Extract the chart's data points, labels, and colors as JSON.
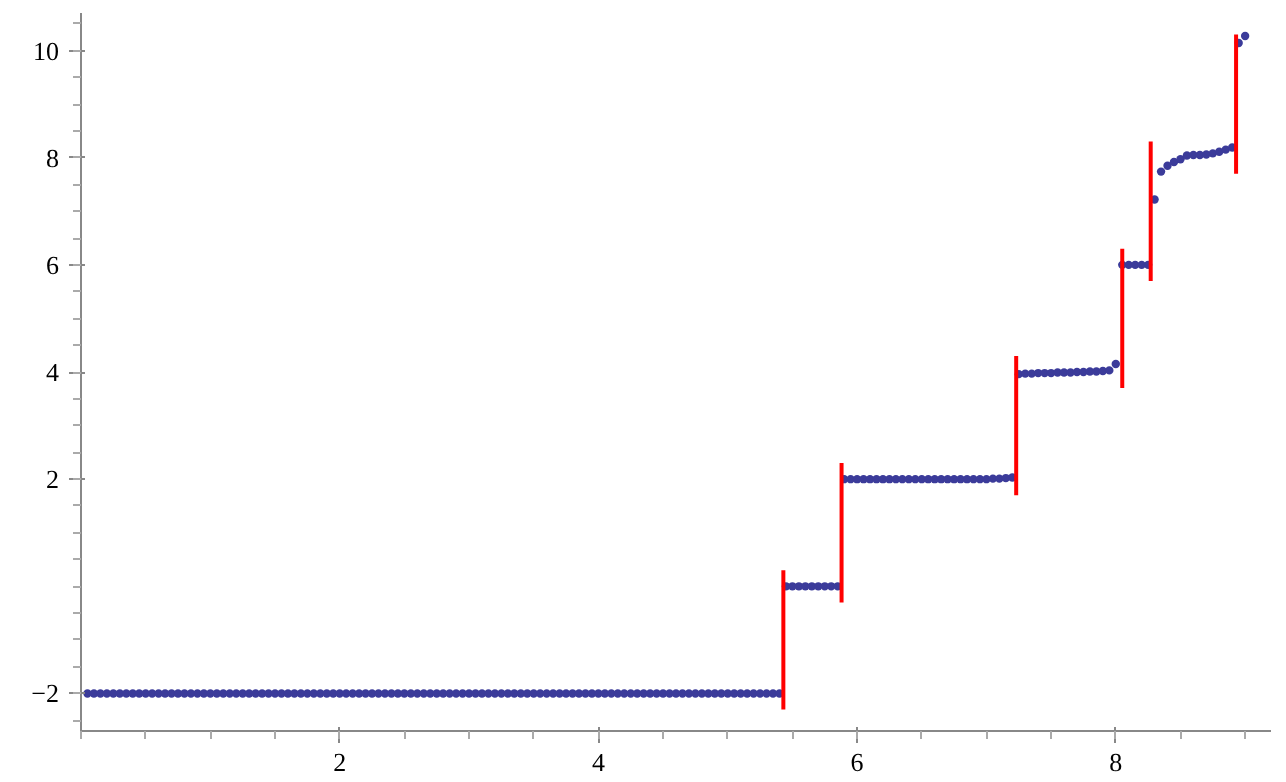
{
  "chart_data": {
    "type": "scatter",
    "xlim": [
      0,
      9.2
    ],
    "ylim": [
      -2.7,
      10.7
    ],
    "xticks": [
      2,
      4,
      6,
      8
    ],
    "yticks": [
      {
        "value": -2,
        "label": "−2"
      },
      2,
      4,
      6,
      8,
      10
    ],
    "grid": false,
    "series": [
      {
        "marker": "circle",
        "color": "#3b3b9a",
        "x": [
          0.05,
          0.1,
          0.15,
          0.2,
          0.25,
          0.3,
          0.35,
          0.4,
          0.45,
          0.5,
          0.55,
          0.6,
          0.65,
          0.7,
          0.75,
          0.8,
          0.85,
          0.9,
          0.95,
          1.0,
          1.05,
          1.1,
          1.15,
          1.2,
          1.25,
          1.3,
          1.35,
          1.4,
          1.45,
          1.5,
          1.55,
          1.6,
          1.65,
          1.7,
          1.75,
          1.8,
          1.85,
          1.9,
          1.95,
          2.0,
          2.05,
          2.1,
          2.15,
          2.2,
          2.25,
          2.3,
          2.35,
          2.4,
          2.45,
          2.5,
          2.55,
          2.6,
          2.65,
          2.7,
          2.75,
          2.8,
          2.85,
          2.9,
          2.95,
          3.0,
          3.05,
          3.1,
          3.15,
          3.2,
          3.25,
          3.3,
          3.35,
          3.4,
          3.45,
          3.5,
          3.55,
          3.6,
          3.65,
          3.7,
          3.75,
          3.8,
          3.85,
          3.9,
          3.95,
          4.0,
          4.05,
          4.1,
          4.15,
          4.2,
          4.25,
          4.3,
          4.35,
          4.4,
          4.45,
          4.5,
          4.55,
          4.6,
          4.65,
          4.7,
          4.75,
          4.8,
          4.85,
          4.9,
          4.95,
          5.0,
          5.05,
          5.1,
          5.15,
          5.2,
          5.25,
          5.3,
          5.35,
          5.4,
          5.45,
          5.5,
          5.55,
          5.6,
          5.65,
          5.7,
          5.75,
          5.8,
          5.85,
          5.9,
          5.95,
          6.0,
          6.05,
          6.1,
          6.15,
          6.2,
          6.25,
          6.3,
          6.35,
          6.4,
          6.45,
          6.5,
          6.55,
          6.6,
          6.65,
          6.7,
          6.75,
          6.8,
          6.85,
          6.9,
          6.95,
          7.0,
          7.05,
          7.1,
          7.15,
          7.2,
          7.25,
          7.3,
          7.35,
          7.4,
          7.45,
          7.5,
          7.55,
          7.6,
          7.65,
          7.7,
          7.75,
          7.8,
          7.85,
          7.9,
          7.95,
          8.0,
          8.05,
          8.1,
          8.15,
          8.2,
          8.25,
          8.3,
          8.35,
          8.4,
          8.45,
          8.5,
          8.55,
          8.6,
          8.65,
          8.7,
          8.75,
          8.8,
          8.85,
          8.9,
          8.95,
          9.0
        ],
        "values": [
          -2,
          -2,
          -2,
          -2,
          -2,
          -2,
          -2,
          -2,
          -2,
          -2,
          -2,
          -2,
          -2,
          -2,
          -2,
          -2,
          -2,
          -2,
          -2,
          -2,
          -2,
          -2,
          -2,
          -2,
          -2,
          -2,
          -2,
          -2,
          -2,
          -2,
          -2,
          -2,
          -2,
          -2,
          -2,
          -2,
          -2,
          -2,
          -2,
          -2,
          -2,
          -2,
          -2,
          -2,
          -2,
          -2,
          -2,
          -2,
          -2,
          -2,
          -2,
          -2,
          -2,
          -2,
          -2,
          -2,
          -2,
          -2,
          -2,
          -2,
          -2,
          -2,
          -2,
          -2,
          -2,
          -2,
          -2,
          -2,
          -2,
          -2,
          -2,
          -2,
          -2,
          -2,
          -2,
          -2,
          -2,
          -2,
          -2,
          -2,
          -2,
          -2,
          -2,
          -2,
          -2,
          -2,
          -2,
          -2,
          -2,
          -2,
          -2,
          -2,
          -2,
          -2,
          -2,
          -2,
          -2,
          -2,
          -2,
          -2,
          -2,
          -2,
          -2,
          -2,
          -2,
          -2,
          -2,
          -2,
          0,
          0,
          0,
          0,
          0,
          0,
          0,
          0,
          0,
          2,
          2,
          2,
          2,
          2,
          2,
          2,
          2,
          2,
          2,
          2,
          2,
          2,
          2,
          2,
          2,
          2,
          2,
          2,
          2,
          2,
          2,
          2,
          2.01,
          2.01,
          2.02,
          2.03,
          3.96,
          3.97,
          3.97,
          3.98,
          3.98,
          3.98,
          3.99,
          3.99,
          3.99,
          4.0,
          4.0,
          4.01,
          4.01,
          4.02,
          4.03,
          4.15,
          6,
          6,
          6,
          6,
          6,
          7.22,
          7.74,
          7.85,
          7.92,
          7.97,
          8.04,
          8.05,
          8.05,
          8.06,
          8.08,
          8.11,
          8.15,
          8.19,
          10.14,
          10.27
        ]
      },
      {
        "type": "line",
        "color": "#ff0000",
        "x": [
          5.43,
          5.43
        ],
        "values": [
          -2.3,
          0.3
        ]
      },
      {
        "type": "line",
        "color": "#ff0000",
        "x": [
          5.88,
          5.88
        ],
        "values": [
          -0.3,
          2.3
        ]
      },
      {
        "type": "line",
        "color": "#ff0000",
        "x": [
          7.23,
          7.23
        ],
        "values": [
          1.7,
          4.3
        ]
      },
      {
        "type": "line",
        "color": "#ff0000",
        "x": [
          8.05,
          8.05
        ],
        "values": [
          3.7,
          6.3
        ]
      },
      {
        "type": "line",
        "color": "#ff0000",
        "x": [
          8.27,
          8.27
        ],
        "values": [
          5.7,
          8.3
        ]
      },
      {
        "type": "line",
        "color": "#ff0000",
        "x": [
          8.93,
          8.93
        ],
        "values": [
          7.7,
          10.3
        ]
      }
    ]
  }
}
